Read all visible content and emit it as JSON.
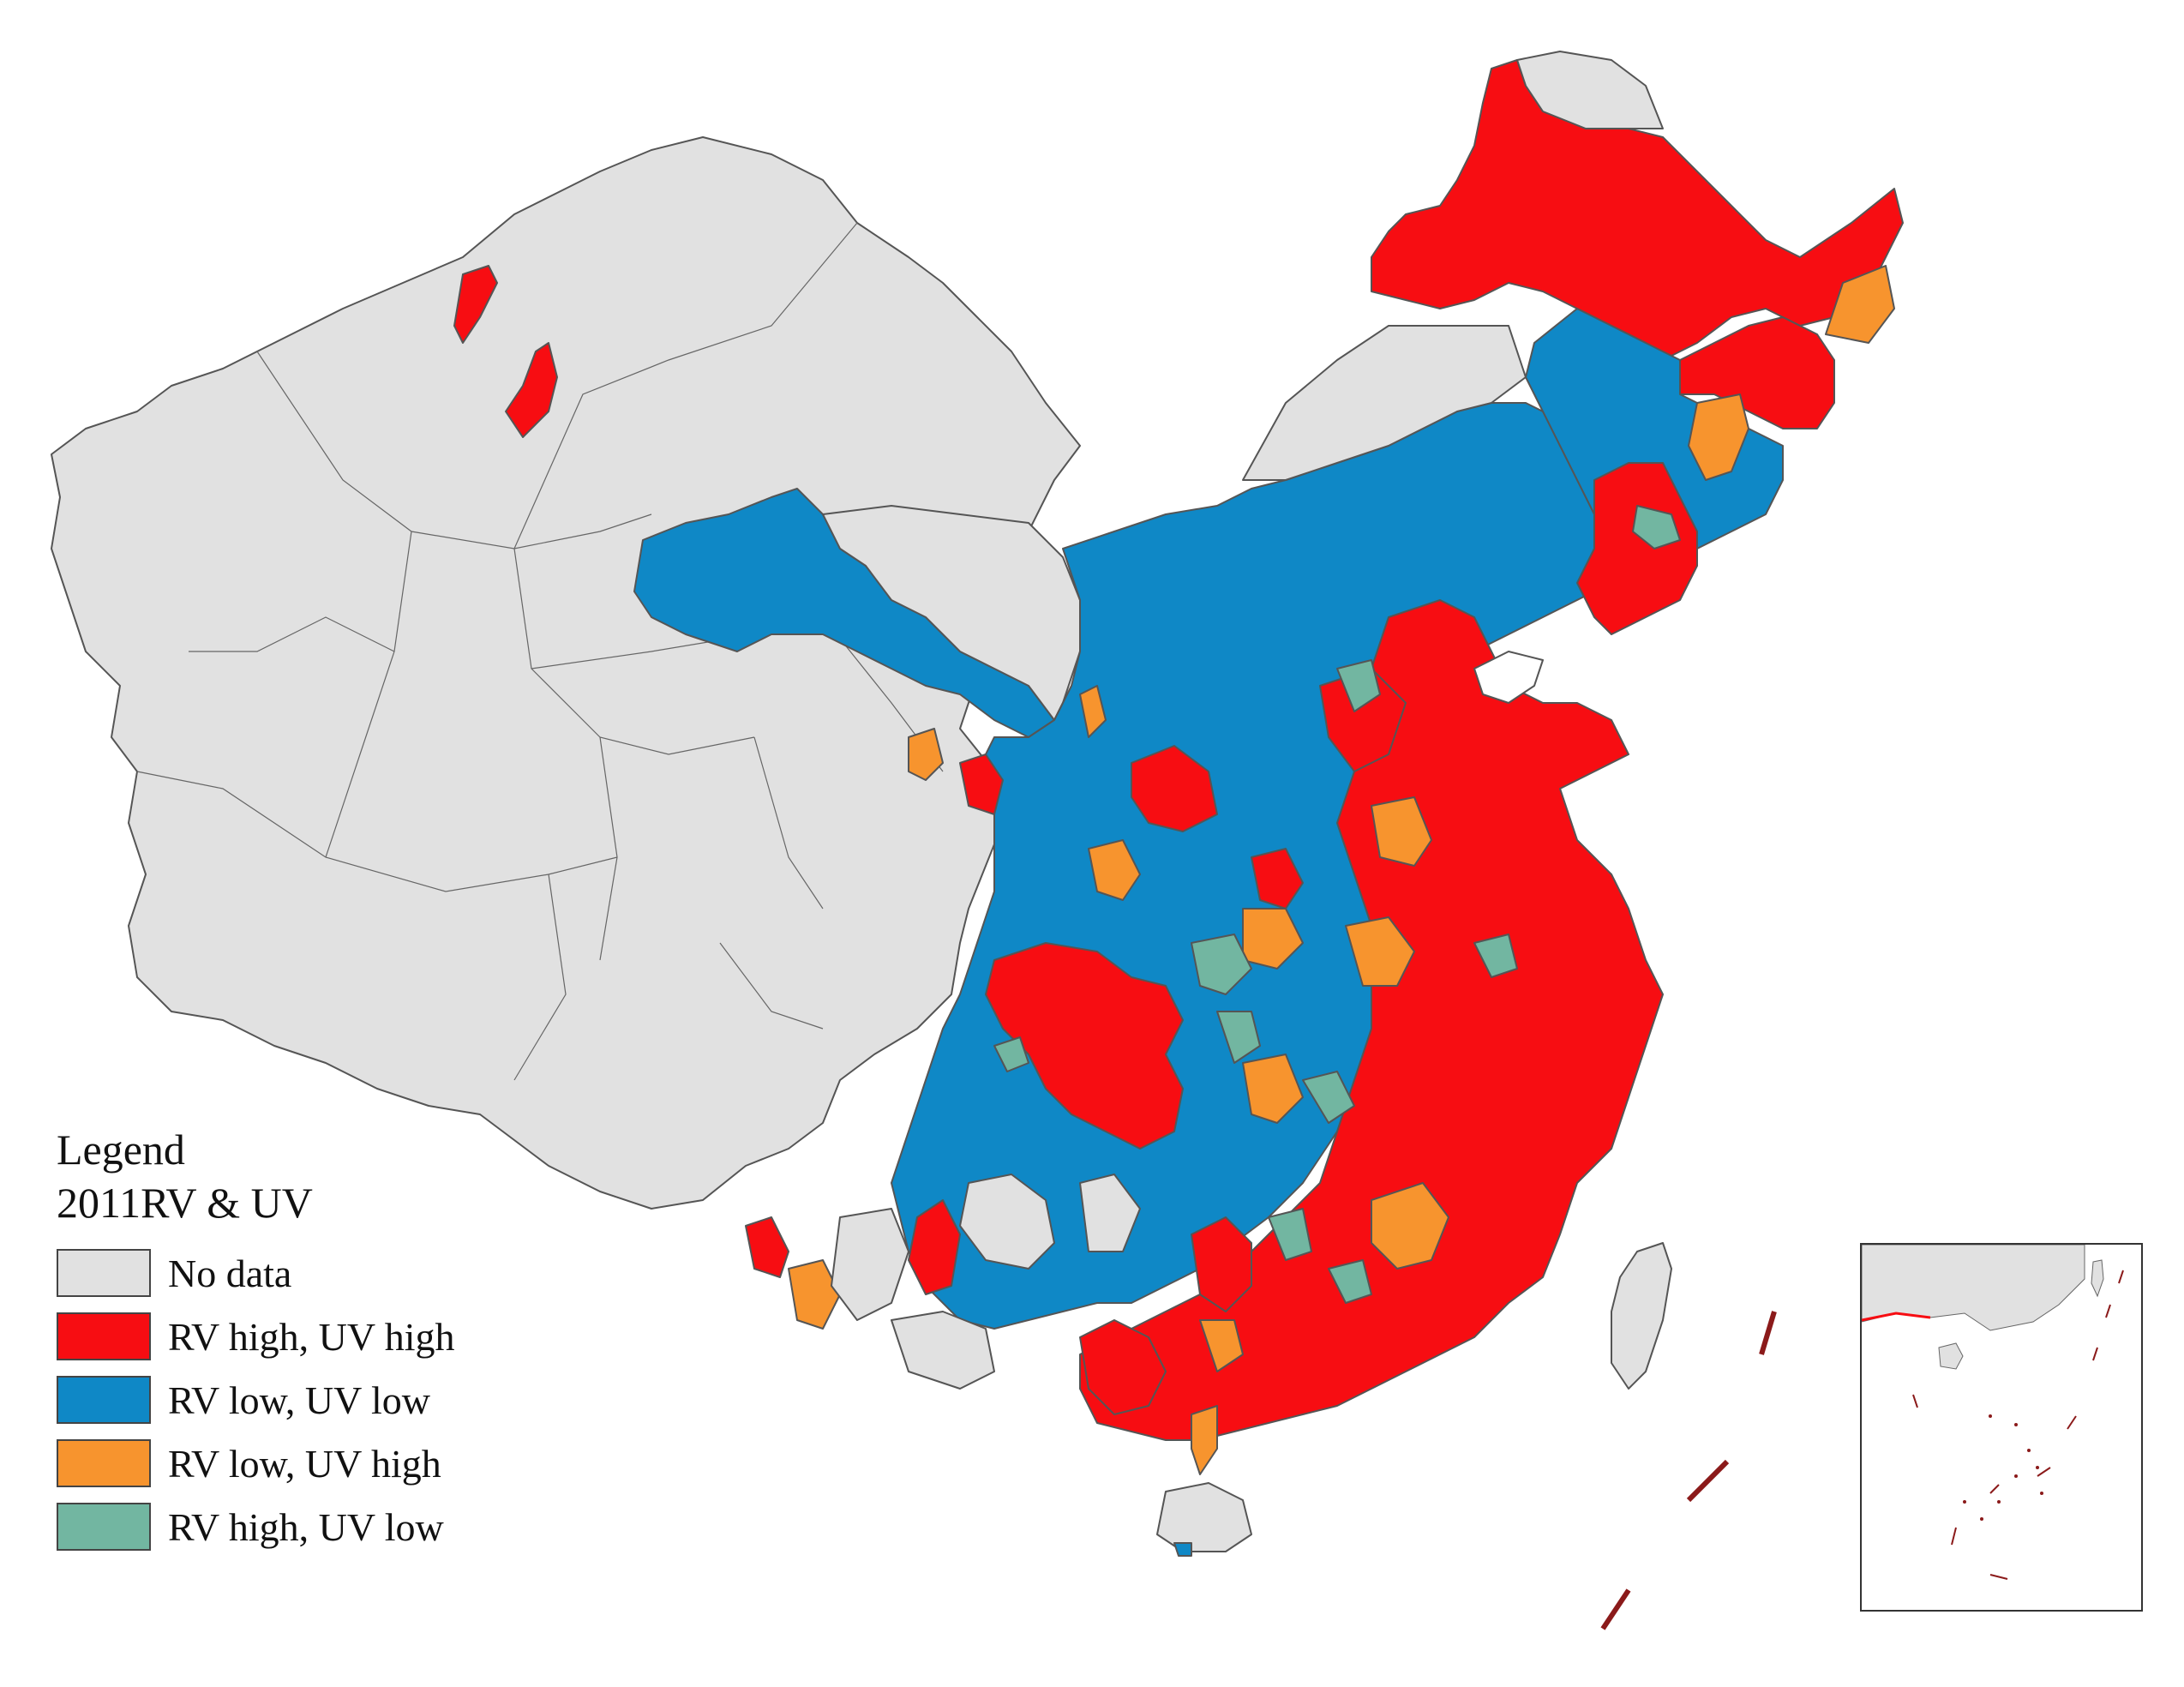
{
  "legend": {
    "heading": "Legend",
    "subheading": "2011RV & UV",
    "items": [
      {
        "label": "No data",
        "color": "#e1e1e1"
      },
      {
        "label": "RV high, UV high",
        "color": "#f70d12"
      },
      {
        "label": "RV low, UV low",
        "color": "#0f88c6"
      },
      {
        "label": "RV low, UV high",
        "color": "#f7942e"
      },
      {
        "label": "RV high, UV low",
        "color": "#72b6a1"
      }
    ]
  },
  "colors": {
    "no_data": "#e1e1e1",
    "high_high": "#f70d12",
    "low_low": "#0f88c6",
    "low_high": "#f7942e",
    "high_low": "#72b6a1",
    "boundary": "#555555",
    "dash_line": "#8b1a1a"
  }
}
